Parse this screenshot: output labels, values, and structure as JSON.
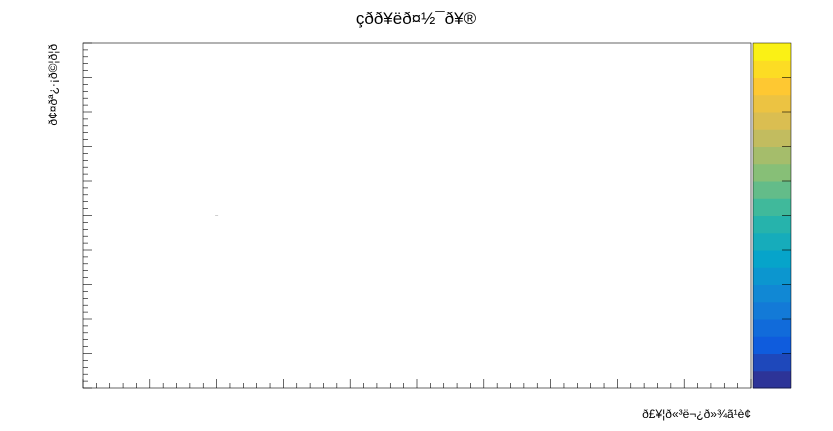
{
  "chart_data": {
    "type": "heatmap",
    "title": "çðð¥ëð¤½¯ð¥®",
    "xlabel": "ð£¥¦ð«³ë¬¿ð»¾ã¹è¢",
    "ylabel": "ð¢¤ðª¿·¡ð©¦ð¦ð",
    "x_tick_labels": [],
    "y_tick_labels": [],
    "colorbar_tick_labels": [],
    "grid": false,
    "colorbar_placement": "right",
    "palette": [
      "#352a87",
      "#0f5cdd",
      "#1481d6",
      "#06a4ca",
      "#2eb7a4",
      "#87bf77",
      "#d1bb59",
      "#fec832",
      "#f9fb0e"
    ],
    "points": [
      {
        "label": "dot",
        "x": 0.2,
        "y": 0.5
      }
    ]
  }
}
